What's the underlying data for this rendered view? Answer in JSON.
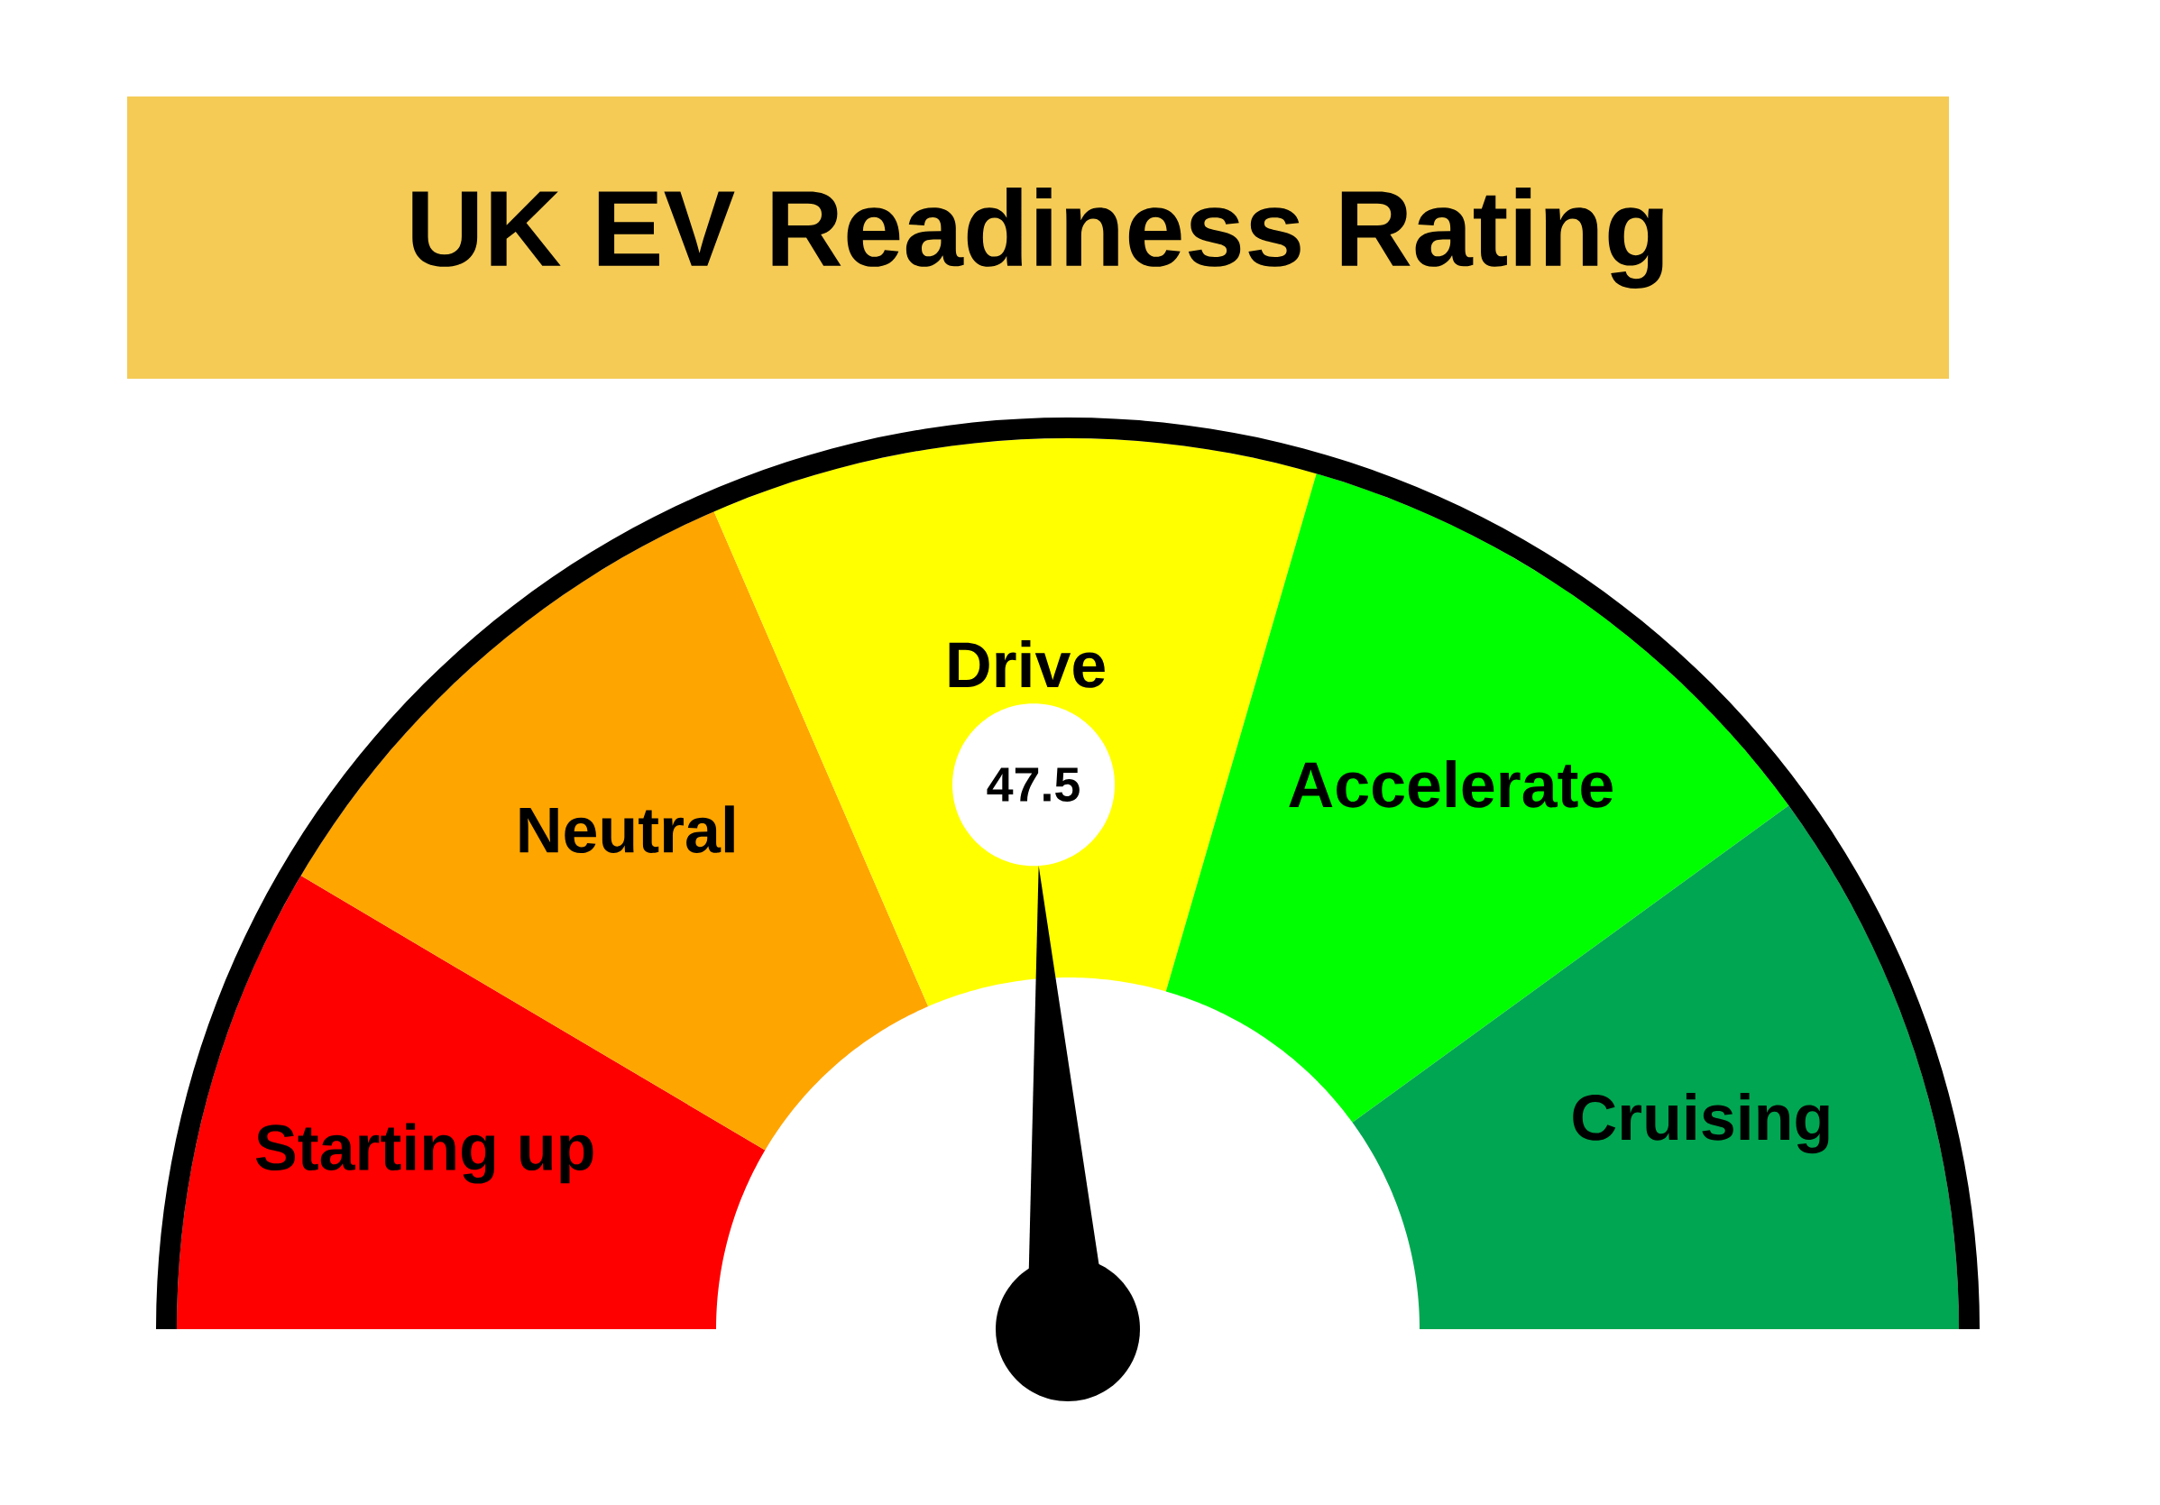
{
  "chart_data": {
    "type": "donut",
    "title": "UK EV Readiness Rating",
    "categories": [
      "Starting up",
      "Neutral",
      "Drive",
      "Accelerate",
      "Cruising"
    ],
    "values": [
      17,
      20,
      22,
      21,
      20
    ],
    "colors": [
      "#ff0000",
      "#ffa500",
      "#ffff00",
      "#00ff00",
      "#00a651"
    ],
    "needle": "Drive",
    "annotations": [
      "47.5"
    ]
  }
}
